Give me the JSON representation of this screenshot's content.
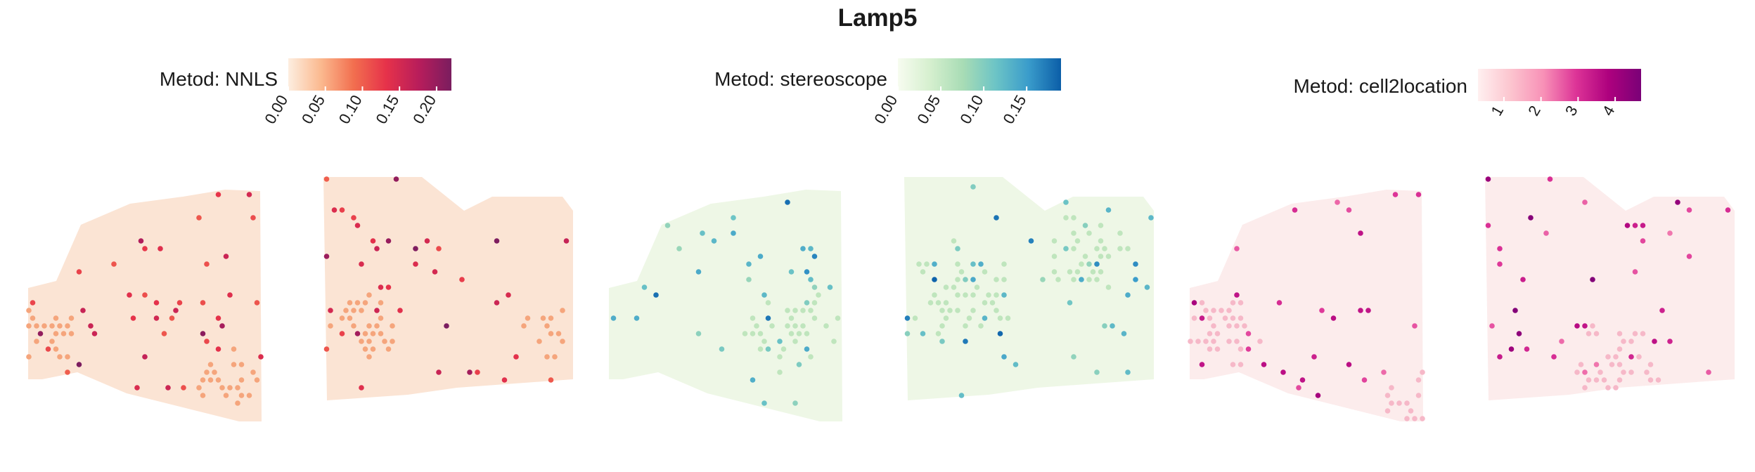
{
  "title": "Lamp5",
  "chart_data": [
    {
      "type": "heatmap",
      "legend_label": "Metod: NNLS",
      "ticks": [
        "0.00",
        "0.05",
        "0.10",
        "0.15",
        "0.20"
      ],
      "tick_values": [
        0,
        0.05,
        0.1,
        0.15,
        0.2
      ],
      "range": [
        0,
        0.22
      ],
      "colors": [
        "#fdeee0",
        "#fbb98f",
        "#f26f4f",
        "#e6324a",
        "#b81d5b",
        "#7a1d5f"
      ],
      "background_color": "#fbe4d4",
      "hotspot_color": "#f5a57c"
    },
    {
      "type": "heatmap",
      "legend_label": "Metod: stereoscope",
      "ticks": [
        "0.00",
        "0.05",
        "0.10",
        "0.15"
      ],
      "tick_values": [
        0,
        0.05,
        0.1,
        0.15
      ],
      "range": [
        0,
        0.19
      ],
      "colors": [
        "#f7fcf0",
        "#d5efce",
        "#a8dcb5",
        "#6cc4c6",
        "#3a9ccb",
        "#0b5ea8"
      ],
      "background_color": "#eef7e6",
      "hotspot_color": "#bfe5bd"
    },
    {
      "type": "heatmap",
      "legend_label": "Metod: cell2location",
      "ticks": [
        "1",
        "2",
        "3",
        "4"
      ],
      "tick_values": [
        1,
        2,
        3,
        4
      ],
      "range": [
        0.3,
        4.7
      ],
      "colors": [
        "#fff0f0",
        "#fcc5cf",
        "#f891b7",
        "#dd3497",
        "#ae017e",
        "#7a0177"
      ],
      "background_color": "#fcecec",
      "hotspot_color": "#f6b8c8"
    }
  ]
}
